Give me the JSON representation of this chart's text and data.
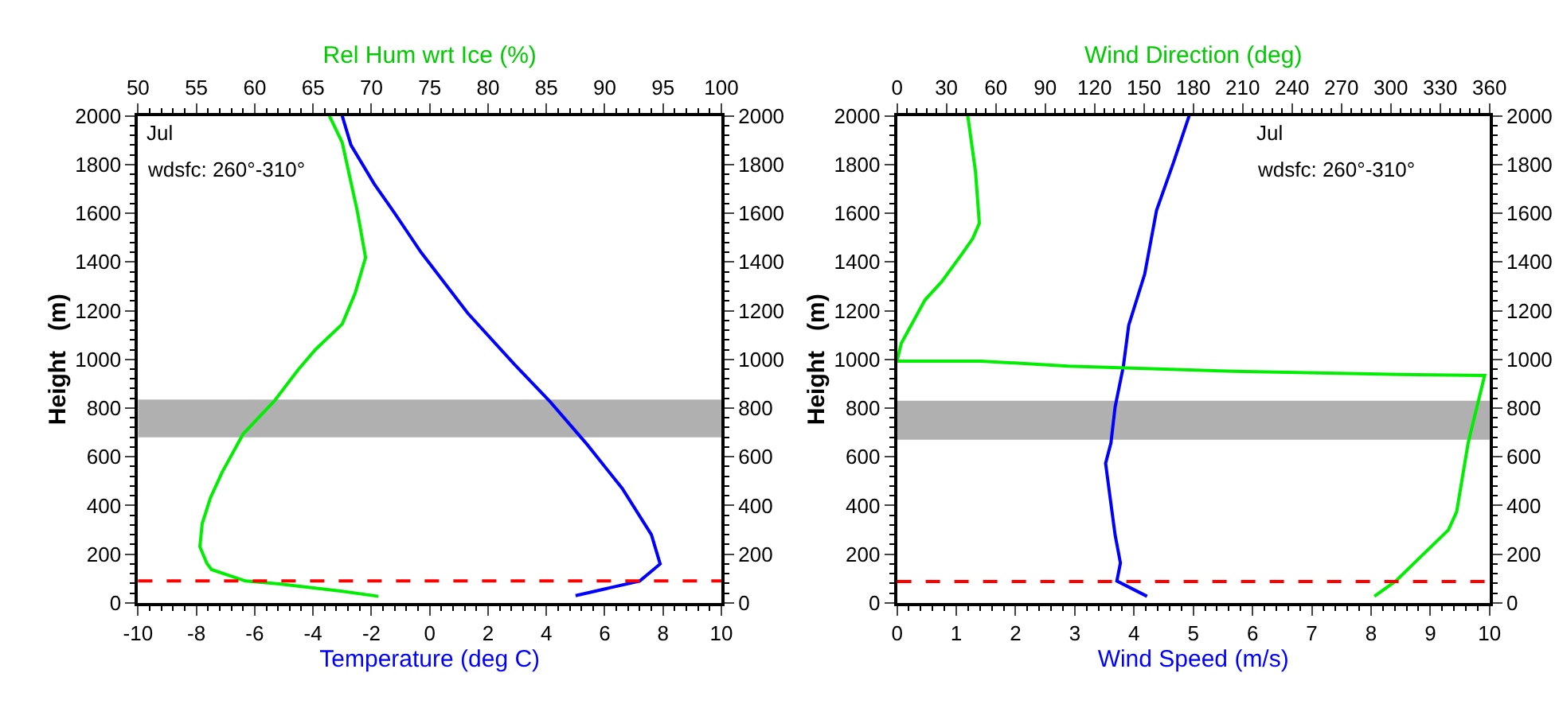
{
  "chart_data": [
    {
      "type": "line",
      "xlabel": "Temperature (deg C)",
      "x2label": "Rel Hum wrt Ice (%)",
      "ylabel": "Height   (m)",
      "xlim": [
        -10,
        10
      ],
      "xticks": [
        -10,
        -8,
        -6,
        -4,
        -2,
        0,
        2,
        4,
        6,
        8,
        10
      ],
      "x2lim": [
        50,
        100
      ],
      "x2ticks": [
        50,
        55,
        60,
        65,
        70,
        75,
        80,
        85,
        90,
        95,
        100
      ],
      "ylim": [
        0,
        2000
      ],
      "yticks": [
        0,
        200,
        400,
        600,
        800,
        1000,
        1200,
        1400,
        1600,
        1800,
        2000
      ],
      "y2lim": [
        0,
        2000
      ],
      "y2ticks": [
        0,
        200,
        400,
        600,
        800,
        1000,
        1200,
        1400,
        1600,
        1800,
        2000
      ],
      "grid": false,
      "marker": "none",
      "line_style": "solid",
      "annotations": [
        "Jul",
        "wdsfc: 260°-310°"
      ],
      "ref_lines": [
        {
          "axis": "y",
          "value": 90,
          "color": "#ff0000",
          "line_style": "dashed"
        }
      ],
      "bands": [
        {
          "axis": "y",
          "from": 680,
          "to": 835,
          "color": "#b0b0b0"
        }
      ],
      "series": [
        {
          "color": "#0000ff",
          "x": [
            5.0,
            7.2,
            7.9,
            7.6,
            6.6,
            5.4,
            4.1,
            2.9,
            1.3,
            -0.3,
            -1.2,
            -1.9,
            -2.7,
            -3.0
          ],
          "values": [
            30,
            90,
            160,
            280,
            470,
            650,
            830,
            980,
            1190,
            1440,
            1600,
            1720,
            1880,
            2000
          ]
        },
        {
          "color": "#00ee00",
          "axis": "x2",
          "x": [
            70.6,
            67.5,
            62.1,
            59.2,
            56.3,
            55.9,
            55.3,
            55.5,
            56.2,
            57.2,
            59.0,
            61.7,
            63.7,
            65.2,
            67.5,
            68.6,
            69.5,
            68.8,
            67.5,
            66.4
          ],
          "values": [
            27,
            48,
            78,
            90,
            137,
            162,
            231,
            326,
            431,
            536,
            693,
            830,
            956,
            1040,
            1145,
            1271,
            1418,
            1607,
            1890,
            2000
          ]
        }
      ]
    },
    {
      "type": "line",
      "xlabel": "Wind Speed (m/s)",
      "x2label": "Wind Direction (deg)",
      "ylabel": "Height   (m)",
      "xlim": [
        0,
        10
      ],
      "xticks": [
        0,
        1,
        2,
        3,
        4,
        5,
        6,
        7,
        8,
        9,
        10
      ],
      "x2lim": [
        0,
        360
      ],
      "x2ticks": [
        0,
        30,
        60,
        90,
        120,
        150,
        180,
        210,
        240,
        270,
        300,
        330,
        360
      ],
      "ylim": [
        0,
        2000
      ],
      "yticks": [
        0,
        200,
        400,
        600,
        800,
        1000,
        1200,
        1400,
        1600,
        1800,
        2000
      ],
      "y2lim": [
        0,
        2000
      ],
      "y2ticks": [
        0,
        200,
        400,
        600,
        800,
        1000,
        1200,
        1400,
        1600,
        1800,
        2000
      ],
      "grid": false,
      "marker": "none",
      "line_style": "solid",
      "annotations": [
        "Jul",
        "wdsfc: 260°-310°"
      ],
      "ref_lines": [
        {
          "axis": "y",
          "value": 88,
          "color": "#ff0000",
          "line_style": "dashed"
        }
      ],
      "bands": [
        {
          "axis": "y",
          "from": 670,
          "to": 830,
          "color": "#b0b0b0"
        }
      ],
      "series": [
        {
          "color": "#0000ff",
          "x": [
            4.22,
            3.71,
            3.77,
            3.68,
            3.6,
            3.52,
            3.61,
            3.68,
            3.82,
            3.91,
            4.18,
            4.38,
            4.67,
            4.93
          ],
          "values": [
            27,
            90,
            164,
            280,
            426,
            573,
            657,
            804,
            972,
            1140,
            1350,
            1612,
            1811,
            2000
          ]
        },
        {
          "color": "#00ee00",
          "axis": "x2",
          "x": [
            290,
            303,
            335,
            340,
            347,
            357,
            306,
            205,
            104,
            51,
            0,
            2.6,
            17,
            27,
            39.5,
            46,
            50,
            47.7,
            43
          ],
          "values": [
            27,
            90,
            300,
            374,
            657,
            934,
            938,
            951,
            972,
            993,
            993,
            1066,
            1244,
            1318,
            1433,
            1496,
            1559,
            1769,
            2000
          ]
        }
      ]
    }
  ]
}
